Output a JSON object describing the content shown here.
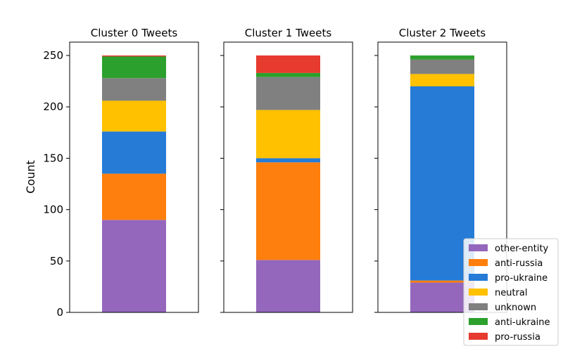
{
  "chart_data": {
    "type": "bar",
    "stacked": true,
    "ylabel": "Count",
    "ylim": [
      0,
      263
    ],
    "yticks": [
      0,
      50,
      100,
      150,
      200,
      250
    ],
    "grid": false,
    "legend_position": "bottom-right",
    "series": [
      {
        "name": "other-entity",
        "color": "#9467bd"
      },
      {
        "name": "anti-russia",
        "color": "#ff7f0e"
      },
      {
        "name": "pro-ukraine",
        "color": "#257bd6"
      },
      {
        "name": "neutral",
        "color": "#ffc100"
      },
      {
        "name": "unknown",
        "color": "#808080"
      },
      {
        "name": "anti-ukraine",
        "color": "#2ca02c"
      },
      {
        "name": "pro-russia",
        "color": "#e63b2e"
      }
    ],
    "panels": [
      {
        "title": "Cluster 0 Tweets",
        "values": {
          "other-entity": 90,
          "anti-russia": 45,
          "pro-ukraine": 41,
          "neutral": 30,
          "unknown": 22,
          "anti-ukraine": 21,
          "pro-russia": 1
        }
      },
      {
        "title": "Cluster 1 Tweets",
        "values": {
          "other-entity": 51,
          "anti-russia": 95,
          "pro-ukraine": 4,
          "neutral": 47,
          "unknown": 32,
          "anti-ukraine": 4,
          "pro-russia": 17
        }
      },
      {
        "title": "Cluster 2 Tweets",
        "values": {
          "other-entity": 29,
          "anti-russia": 2,
          "pro-ukraine": 189,
          "neutral": 12,
          "unknown": 14,
          "anti-ukraine": 4,
          "pro-russia": 0
        }
      }
    ]
  }
}
